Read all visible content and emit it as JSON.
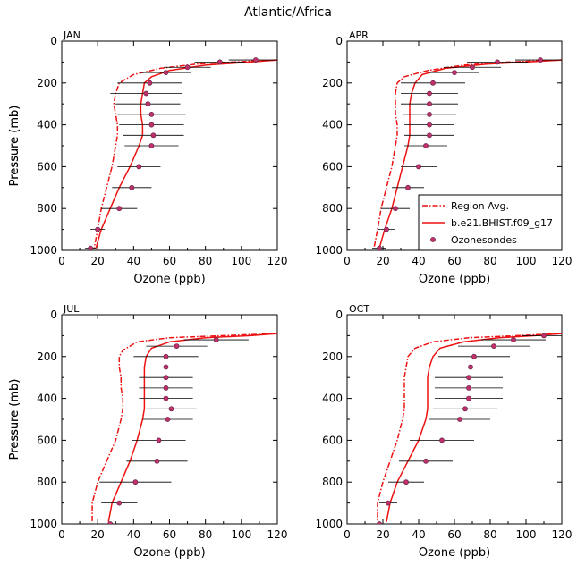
{
  "figure_title": "Atlantic/Africa",
  "colors": {
    "line": "#ee1111",
    "marker": "#c0306a",
    "marker_edge": "#5a2040",
    "bar": "#000000"
  },
  "legend": {
    "items": [
      {
        "label": "Region Avg.",
        "style": "dashed"
      },
      {
        "label": "b.e21.BHIST.f09_g17",
        "style": "solid"
      },
      {
        "label": "Ozonesondes",
        "style": "marker"
      }
    ]
  },
  "chart_data": [
    {
      "type": "line",
      "title": "JAN",
      "xlabel": "Ozone (ppb)",
      "ylabel": "Pressure (mb)",
      "xlim": [
        0,
        120
      ],
      "ylim": [
        1000,
        0
      ],
      "xticks": [
        "0",
        "20",
        "40",
        "60",
        "80",
        "100",
        "120"
      ],
      "yticks": [
        "0",
        "200",
        "400",
        "600",
        "800",
        "1000"
      ],
      "series": [
        {
          "name": "Region Avg.",
          "style": "dashed",
          "x": [
            120,
            95,
            75,
            55,
            40,
            32,
            30,
            29,
            30,
            31,
            31,
            30,
            28,
            25,
            22,
            20,
            18
          ],
          "y": [
            90,
            100,
            110,
            130,
            160,
            200,
            250,
            300,
            350,
            400,
            450,
            500,
            600,
            700,
            800,
            900,
            990
          ]
        },
        {
          "name": "b.e21.BHIST.f09_g17",
          "style": "solid",
          "x": [
            120,
            105,
            80,
            60,
            50,
            46,
            45,
            44,
            44,
            45,
            45,
            43,
            38,
            32,
            27,
            22,
            19
          ],
          "y": [
            90,
            100,
            115,
            140,
            170,
            200,
            250,
            300,
            350,
            400,
            450,
            500,
            600,
            700,
            800,
            900,
            990
          ]
        },
        {
          "name": "Ozonesondes",
          "style": "marker",
          "x": [
            108,
            88,
            70,
            58,
            49,
            47,
            48,
            50,
            50,
            51,
            50,
            43,
            39,
            32,
            20,
            16
          ],
          "y": [
            90,
            100,
            125,
            150,
            200,
            250,
            300,
            350,
            400,
            450,
            500,
            600,
            700,
            800,
            900,
            990
          ],
          "xerr": [
            15,
            14,
            13,
            14,
            18,
            20,
            18,
            19,
            18,
            17,
            15,
            12,
            11,
            10,
            4,
            3
          ]
        }
      ]
    },
    {
      "type": "line",
      "title": "APR",
      "xlabel": "Ozone (ppb)",
      "ylabel": "Pressure (mb)",
      "xlim": [
        0,
        120
      ],
      "ylim": [
        1000,
        0
      ],
      "xticks": [
        "0",
        "20",
        "40",
        "60",
        "80",
        "100",
        "120"
      ],
      "yticks": [
        "0",
        "200",
        "400",
        "600",
        "800",
        "1000"
      ],
      "series": [
        {
          "name": "Region Avg.",
          "style": "dashed",
          "x": [
            120,
            90,
            65,
            45,
            32,
            28,
            27,
            27,
            27,
            28,
            28,
            27,
            25,
            22,
            19,
            17,
            15
          ],
          "y": [
            90,
            100,
            115,
            140,
            170,
            200,
            250,
            300,
            350,
            400,
            450,
            500,
            600,
            700,
            800,
            900,
            990
          ]
        },
        {
          "name": "b.e21.BHIST.f09_g17",
          "style": "solid",
          "x": [
            120,
            100,
            78,
            55,
            42,
            38,
            36,
            35,
            35,
            35,
            35,
            34,
            31,
            28,
            25,
            21,
            18
          ],
          "y": [
            90,
            100,
            110,
            130,
            160,
            200,
            250,
            300,
            350,
            400,
            450,
            500,
            600,
            700,
            800,
            900,
            990
          ]
        },
        {
          "name": "Ozonesondes",
          "style": "marker",
          "x": [
            108,
            84,
            70,
            60,
            48,
            46,
            46,
            46,
            46,
            46,
            44,
            40,
            34,
            27,
            22,
            18
          ],
          "y": [
            90,
            100,
            125,
            150,
            200,
            250,
            300,
            350,
            400,
            450,
            500,
            600,
            700,
            800,
            900,
            990
          ],
          "xerr": [
            14,
            17,
            16,
            14,
            18,
            16,
            16,
            15,
            14,
            14,
            12,
            10,
            9,
            8,
            5,
            4
          ]
        }
      ]
    },
    {
      "type": "line",
      "title": "JUL",
      "xlabel": "Ozone (ppb)",
      "ylabel": "Pressure (mb)",
      "xlim": [
        0,
        120
      ],
      "ylim": [
        1000,
        0
      ],
      "xticks": [
        "0",
        "20",
        "40",
        "60",
        "80",
        "100",
        "120"
      ],
      "yticks": [
        "0",
        "200",
        "400",
        "600",
        "800",
        "1000"
      ],
      "series": [
        {
          "name": "Region Avg.",
          "style": "dashed",
          "x": [
            120,
            90,
            60,
            42,
            34,
            32,
            32,
            33,
            33,
            34,
            34,
            33,
            30,
            25,
            20,
            17,
            17
          ],
          "y": [
            90,
            100,
            110,
            130,
            170,
            200,
            250,
            300,
            350,
            400,
            450,
            500,
            600,
            700,
            800,
            900,
            990
          ]
        },
        {
          "name": "b.e21.BHIST.f09_g17",
          "style": "solid",
          "x": [
            120,
            105,
            80,
            60,
            50,
            47,
            46,
            46,
            46,
            46,
            46,
            45,
            42,
            38,
            33,
            28,
            26
          ],
          "y": [
            90,
            100,
            110,
            130,
            160,
            200,
            250,
            300,
            350,
            400,
            450,
            500,
            600,
            700,
            800,
            900,
            990
          ]
        },
        {
          "name": "Ozonesondes",
          "style": "marker",
          "x": [
            86,
            64,
            58,
            58,
            58,
            58,
            58,
            61,
            59,
            54,
            53,
            41,
            32,
            27
          ],
          "y": [
            120,
            150,
            200,
            250,
            300,
            350,
            400,
            450,
            500,
            600,
            700,
            800,
            900,
            1000
          ],
          "xerr": [
            18,
            17,
            18,
            16,
            15,
            15,
            15,
            14,
            14,
            15,
            17,
            20,
            10,
            6
          ]
        }
      ]
    },
    {
      "type": "line",
      "title": "OCT",
      "xlabel": "Ozone (ppb)",
      "ylabel": "Pressure (mb)",
      "xlim": [
        0,
        120
      ],
      "ylim": [
        1000,
        0
      ],
      "xticks": [
        "0",
        "20",
        "40",
        "60",
        "80",
        "100",
        "120"
      ],
      "yticks": [
        "0",
        "200",
        "400",
        "600",
        "800",
        "1000"
      ],
      "series": [
        {
          "name": "Region Avg.",
          "style": "dashed",
          "x": [
            120,
            95,
            68,
            48,
            38,
            34,
            33,
            32,
            32,
            32,
            32,
            31,
            28,
            24,
            20,
            17,
            17
          ],
          "y": [
            90,
            100,
            110,
            130,
            160,
            200,
            250,
            300,
            350,
            400,
            450,
            500,
            600,
            700,
            800,
            900,
            990
          ]
        },
        {
          "name": "b.e21.BHIST.f09_g17",
          "style": "solid",
          "x": [
            120,
            105,
            85,
            65,
            52,
            48,
            46,
            45,
            45,
            45,
            45,
            44,
            40,
            34,
            28,
            24,
            22
          ],
          "y": [
            90,
            100,
            110,
            130,
            160,
            200,
            250,
            300,
            350,
            400,
            450,
            500,
            600,
            700,
            800,
            900,
            990
          ]
        },
        {
          "name": "Ozonesondes",
          "style": "marker",
          "x": [
            110,
            93,
            82,
            71,
            69,
            68,
            68,
            68,
            66,
            63,
            53,
            44,
            33,
            23,
            18
          ],
          "y": [
            100,
            120,
            150,
            200,
            250,
            300,
            350,
            400,
            450,
            500,
            600,
            700,
            800,
            900,
            1000
          ],
          "xerr": [
            12,
            18,
            20,
            20,
            19,
            19,
            19,
            19,
            18,
            17,
            18,
            15,
            10,
            5,
            4
          ]
        }
      ]
    }
  ]
}
